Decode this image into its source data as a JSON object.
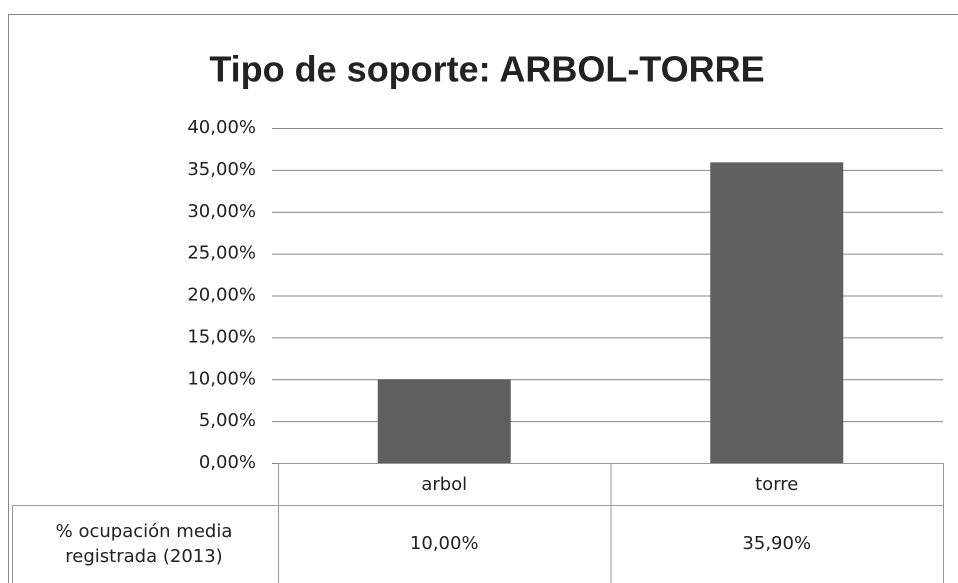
{
  "chart_data": {
    "type": "bar",
    "title": "Tipo de soporte: ARBOL-TORRE",
    "categories": [
      "arbol",
      "torre"
    ],
    "series": [
      {
        "name": "% ocupación media registrada (2013)",
        "color": "#5f5f5f",
        "values": [
          10,
          35.9
        ],
        "value_labels": [
          "10,00%",
          "35,90%"
        ]
      }
    ],
    "ylim": [
      0,
      40
    ],
    "yticks": [
      {
        "value": 0,
        "label": "0,00%"
      },
      {
        "value": 5,
        "label": "5,00%"
      },
      {
        "value": 10,
        "label": "10,00%"
      },
      {
        "value": 15,
        "label": "15,00%"
      },
      {
        "value": 20,
        "label": "20,00%"
      },
      {
        "value": 25,
        "label": "25,00%"
      },
      {
        "value": 30,
        "label": "30,00%"
      },
      {
        "value": 35,
        "label": "35,00%"
      },
      {
        "value": 40,
        "label": "40,00%"
      }
    ],
    "grid": true
  }
}
